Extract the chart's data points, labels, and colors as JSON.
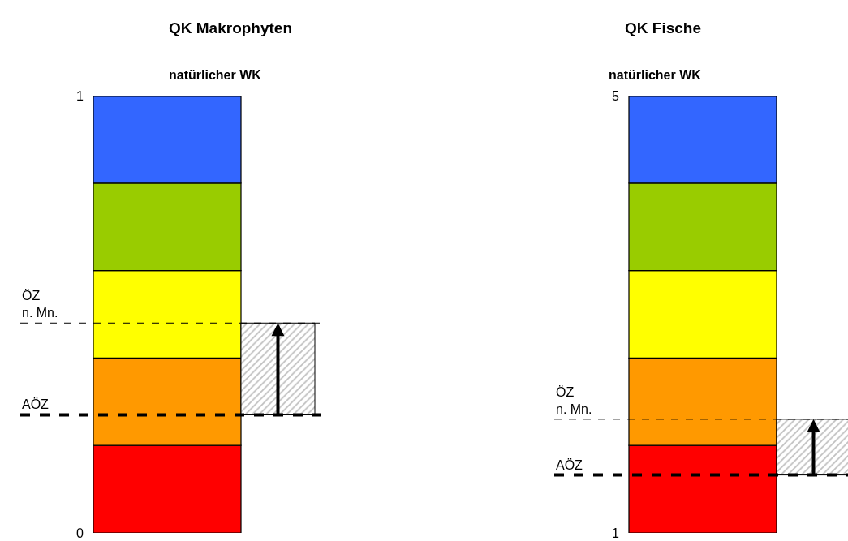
{
  "chart_data": [
    {
      "type": "bar",
      "title": "QK Makrophyten",
      "subtitle": "natürlicher WK",
      "categories": [
        null
      ],
      "stacked": true,
      "ylim": [
        0,
        1
      ],
      "yticks": [
        0,
        1
      ],
      "series": [
        {
          "color": "#ff0000",
          "values": [
            0.2
          ]
        },
        {
          "color": "#ff9900",
          "values": [
            0.2
          ]
        },
        {
          "color": "#ffff00",
          "values": [
            0.2
          ]
        },
        {
          "color": "#99cc00",
          "values": [
            0.2
          ]
        },
        {
          "color": "#3366ff",
          "values": [
            0.2
          ]
        }
      ],
      "ref_lines": [
        {
          "axis": "y",
          "value": 0.48,
          "label": "ÖZ\nn. Mn.",
          "line_style": "dashed"
        },
        {
          "axis": "y",
          "value": 0.27,
          "label": "AÖZ",
          "line_style": "dashed"
        }
      ],
      "bands": [
        {
          "axis": "y",
          "from": 0.27,
          "to": 0.48,
          "color": "#808080"
        }
      ]
    },
    {
      "type": "bar",
      "title": "QK Fische",
      "subtitle": "natürlicher WK",
      "categories": [
        null
      ],
      "ylim": [
        1,
        5
      ],
      "yticks": [
        1,
        5
      ],
      "series": [
        {
          "color": "#ff0000",
          "base": [
            1
          ],
          "values": [
            0.8
          ]
        },
        {
          "color": "#ff9900",
          "base": [
            1.8
          ],
          "values": [
            0.8
          ]
        },
        {
          "color": "#ffff00",
          "base": [
            2.6
          ],
          "values": [
            0.8
          ]
        },
        {
          "color": "#99cc00",
          "base": [
            3.4
          ],
          "values": [
            0.8
          ]
        },
        {
          "color": "#3366ff",
          "base": [
            4.2
          ],
          "values": [
            0.8
          ]
        }
      ],
      "ref_lines": [
        {
          "axis": "y",
          "value": 2.04,
          "label": "ÖZ\nn. Mn.",
          "line_style": "dashed"
        },
        {
          "axis": "y",
          "value": 1.53,
          "label": "AÖZ",
          "line_style": "dashed"
        }
      ],
      "bands": [
        {
          "axis": "y",
          "from": 1.53,
          "to": 2.04,
          "color": "#808080"
        }
      ]
    }
  ]
}
